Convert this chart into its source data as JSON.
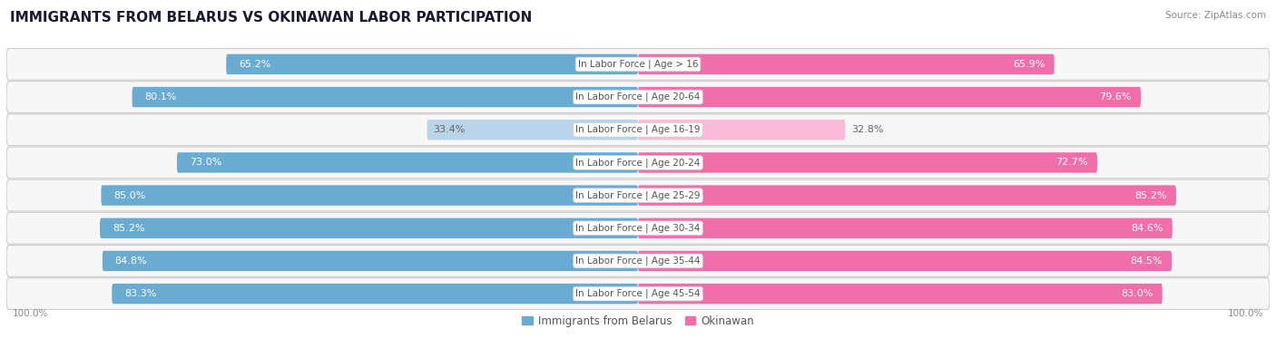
{
  "title": "IMMIGRANTS FROM BELARUS VS OKINAWAN LABOR PARTICIPATION",
  "source": "Source: ZipAtlas.com",
  "categories": [
    "In Labor Force | Age > 16",
    "In Labor Force | Age 20-64",
    "In Labor Force | Age 16-19",
    "In Labor Force | Age 20-24",
    "In Labor Force | Age 25-29",
    "In Labor Force | Age 30-34",
    "In Labor Force | Age 35-44",
    "In Labor Force | Age 45-54"
  ],
  "belarus_values": [
    65.2,
    80.1,
    33.4,
    73.0,
    85.0,
    85.2,
    84.8,
    83.3
  ],
  "okinawan_values": [
    65.9,
    79.6,
    32.8,
    72.7,
    85.2,
    84.6,
    84.5,
    83.0
  ],
  "belarus_color": "#6aabd2",
  "okinawan_color": "#f06faa",
  "belarus_color_light": "#b8d4e8",
  "okinawan_color_light": "#f9bbd5",
  "row_bg_color": "#ebebeb",
  "row_bg_inner": "#f7f7f7",
  "label_color_white": "#ffffff",
  "label_color_dark": "#666666",
  "category_label_color": "#555555",
  "max_value": 100.0,
  "bar_height": 0.62,
  "title_fontsize": 11,
  "label_fontsize": 8,
  "category_fontsize": 7.5,
  "legend_fontsize": 8.5,
  "axis_label_fontsize": 7.5
}
